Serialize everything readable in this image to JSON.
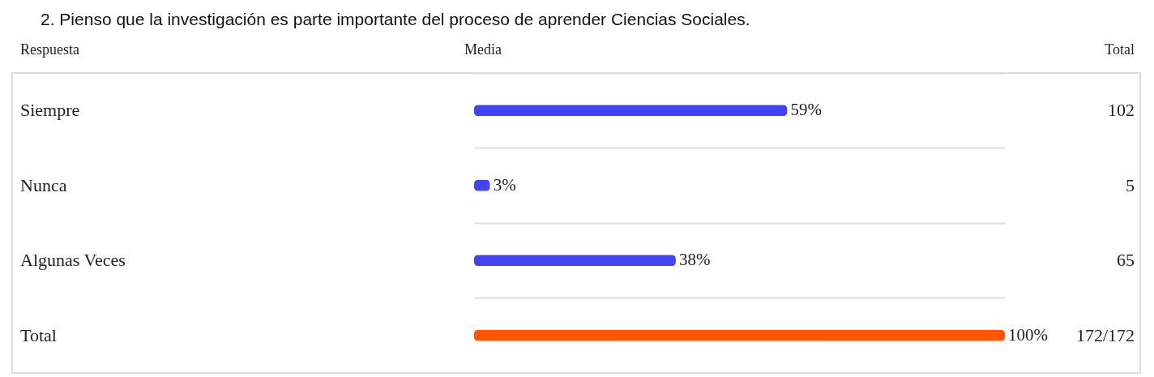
{
  "chart_data": {
    "type": "bar",
    "orientation": "horizontal",
    "title": "2.   Pienso que la investigación es parte importante del proceso de aprender Ciencias Sociales.",
    "ylabel": "Respuesta",
    "xlabel": "Media",
    "categories": [
      "Siempre",
      "Nunca",
      "Algunas Veces",
      "Total"
    ],
    "values": [
      59,
      3,
      38,
      100
    ],
    "colors": [
      "#4444ee",
      "#4444ee",
      "#4444ee",
      "#ff5500"
    ],
    "value_labels": [
      "59%",
      "3%",
      "38%",
      "100%"
    ],
    "annotations": [
      "Total",
      "102",
      "5",
      "65",
      "172/172"
    ],
    "grid": "y"
  }
}
